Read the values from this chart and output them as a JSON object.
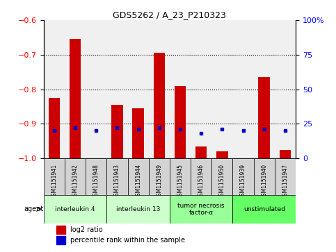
{
  "title": "GDS5262 / A_23_P210323",
  "samples": [
    "GSM1151941",
    "GSM1151942",
    "GSM1151948",
    "GSM1151943",
    "GSM1151944",
    "GSM1151949",
    "GSM1151945",
    "GSM1151946",
    "GSM1151950",
    "GSM1151939",
    "GSM1151940",
    "GSM1151947"
  ],
  "log2_ratio": [
    -0.825,
    -0.655,
    -1.0,
    -0.845,
    -0.855,
    -0.695,
    -0.79,
    -0.965,
    -0.98,
    -1.0,
    -0.765,
    -0.975
  ],
  "percentile_rank": [
    20,
    22,
    20,
    22,
    21,
    22,
    21,
    18,
    21,
    20,
    21,
    20
  ],
  "groups": [
    {
      "label": "interleukin 4",
      "color": "#ccffcc",
      "start": 0,
      "end": 2
    },
    {
      "label": "interleukin 13",
      "color": "#ccffcc",
      "start": 3,
      "end": 5
    },
    {
      "label": "tumor necrosis\nfactor-α",
      "color": "#99ff99",
      "start": 6,
      "end": 8
    },
    {
      "label": "unstimulated",
      "color": "#66ff66",
      "start": 9,
      "end": 11
    }
  ],
  "ylim_left": [
    -1.0,
    -0.6
  ],
  "ylim_right": [
    0,
    100
  ],
  "yticks_left": [
    -1.0,
    -0.9,
    -0.8,
    -0.7,
    -0.6
  ],
  "yticks_right": [
    0,
    25,
    50,
    75,
    100
  ],
  "bar_color": "#cc0000",
  "dot_color": "#0000cc",
  "background_color": "#ffffff",
  "plot_bg": "#f0f0f0",
  "sample_box_color": "#d3d3d3",
  "agent_label": "agent"
}
